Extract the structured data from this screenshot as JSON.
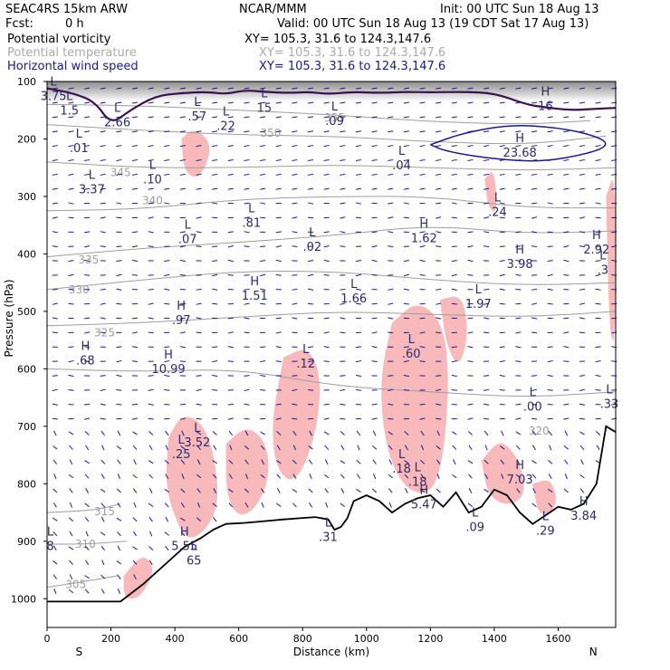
{
  "header": {
    "model": "SEAC4RS 15km ARW",
    "org": "NCAR/MMM",
    "init": "Init: 00 UTC Sun 18 Aug 13",
    "fcst_label": "Fcst:",
    "fcst_value": "0 h",
    "valid": "Valid: 00 UTC Sun 18 Aug 13 (19 CDT Sat 17 Aug 13)",
    "fields": [
      {
        "name": "Potential vorticity",
        "xy": "XY= 105.3, 31.6 to 124.3,147.6",
        "color": "#000000"
      },
      {
        "name": "Potential temperature",
        "xy": "XY= 105.3, 31.6 to 124.3,147.6",
        "color": "#aaaaaa"
      },
      {
        "name": "Horizontal wind speed",
        "xy": "XY= 105.3, 31.6 to 124.3,147.6",
        "color": "#1a1a8c"
      }
    ]
  },
  "chart_data": {
    "type": "cross-section",
    "xlabel": "Distance (km)",
    "ylabel": "Pressure (hPa)",
    "x_ticks": [
      0,
      200,
      400,
      600,
      800,
      1000,
      1200,
      1400,
      1600
    ],
    "y_ticks": [
      100,
      200,
      300,
      400,
      500,
      600,
      700,
      800,
      900,
      1000
    ],
    "xlim": [
      0,
      1780
    ],
    "ylim": [
      1050,
      100
    ],
    "x_end_labels": {
      "left": "S",
      "right": "N"
    },
    "terrain": [
      [
        0,
        1005
      ],
      [
        100,
        1005
      ],
      [
        230,
        1005
      ],
      [
        300,
        975
      ],
      [
        380,
        935
      ],
      [
        430,
        910
      ],
      [
        480,
        895
      ],
      [
        520,
        880
      ],
      [
        560,
        870
      ],
      [
        620,
        868
      ],
      [
        680,
        865
      ],
      [
        740,
        862
      ],
      [
        790,
        860
      ],
      [
        840,
        858
      ],
      [
        880,
        862
      ],
      [
        900,
        880
      ],
      [
        920,
        875
      ],
      [
        940,
        860
      ],
      [
        960,
        830
      ],
      [
        1000,
        820
      ],
      [
        1040,
        830
      ],
      [
        1080,
        850
      ],
      [
        1120,
        835
      ],
      [
        1160,
        825
      ],
      [
        1200,
        820
      ],
      [
        1240,
        840
      ],
      [
        1280,
        815
      ],
      [
        1320,
        850
      ],
      [
        1360,
        840
      ],
      [
        1400,
        810
      ],
      [
        1440,
        820
      ],
      [
        1480,
        850
      ],
      [
        1520,
        870
      ],
      [
        1560,
        855
      ],
      [
        1600,
        840
      ],
      [
        1640,
        845
      ],
      [
        1680,
        835
      ],
      [
        1720,
        800
      ],
      [
        1750,
        700
      ],
      [
        1780,
        710
      ]
    ],
    "theta_contours": [
      {
        "label": "355",
        "label_at": [
          900,
          163
        ],
        "points": [
          [
            0,
            140
          ],
          [
            300,
            142
          ],
          [
            600,
            150
          ],
          [
            900,
            158
          ],
          [
            1200,
            170
          ],
          [
            1500,
            175
          ],
          [
            1700,
            168
          ]
        ]
      },
      {
        "label": "350",
        "label_at": [
          700,
          190
        ],
        "points": [
          [
            0,
            175
          ],
          [
            300,
            185
          ],
          [
            600,
            193
          ],
          [
            900,
            195
          ],
          [
            1200,
            205
          ],
          [
            1500,
            210
          ],
          [
            1750,
            195
          ]
        ]
      },
      {
        "label": "345",
        "label_at": [
          230,
          258
        ],
        "points": [
          [
            0,
            240
          ],
          [
            300,
            250
          ],
          [
            600,
            250
          ],
          [
            900,
            245
          ],
          [
            1200,
            250
          ],
          [
            1500,
            255
          ],
          [
            1780,
            250
          ]
        ]
      },
      {
        "label": "340",
        "label_at": [
          330,
          307
        ],
        "points": [
          [
            0,
            325
          ],
          [
            300,
            322
          ],
          [
            600,
            305
          ],
          [
            900,
            300
          ],
          [
            1200,
            300
          ],
          [
            1500,
            320
          ],
          [
            1780,
            320
          ]
        ]
      },
      {
        "label": "335",
        "label_at": [
          130,
          410
        ],
        "points": [
          [
            0,
            405
          ],
          [
            300,
            390
          ],
          [
            600,
            380
          ],
          [
            900,
            368
          ],
          [
            1200,
            350
          ],
          [
            1500,
            365
          ],
          [
            1780,
            360
          ]
        ]
      },
      {
        "label": "330",
        "label_at": [
          100,
          462
        ],
        "points": [
          [
            0,
            462
          ],
          [
            300,
            445
          ],
          [
            600,
            430
          ],
          [
            900,
            430
          ],
          [
            1200,
            445
          ],
          [
            1500,
            455
          ],
          [
            1780,
            450
          ]
        ]
      },
      {
        "label": "325",
        "label_at": [
          180,
          537
        ],
        "points": [
          [
            0,
            525
          ],
          [
            300,
            520
          ],
          [
            600,
            510
          ],
          [
            900,
            500
          ],
          [
            1200,
            505
          ],
          [
            1500,
            510
          ],
          [
            1780,
            500
          ]
        ]
      },
      {
        "label": "320",
        "label_at": [
          1540,
          708
        ],
        "points": [
          [
            0,
            600
          ],
          [
            300,
            605
          ],
          [
            600,
            600
          ],
          [
            900,
            630
          ],
          [
            1200,
            640
          ],
          [
            1500,
            650
          ],
          [
            1780,
            640
          ]
        ]
      },
      {
        "label": "315",
        "label_at": [
          180,
          848
        ],
        "points": [
          [
            0,
            850
          ],
          [
            150,
            846
          ],
          [
            230,
            835
          ]
        ]
      },
      {
        "label": "310",
        "label_at": [
          120,
          905
        ],
        "points": [
          [
            0,
            905
          ],
          [
            120,
            905
          ],
          [
            250,
            900
          ]
        ]
      },
      {
        "label": "305",
        "label_at": [
          90,
          975
        ],
        "points": [
          [
            0,
            980
          ],
          [
            120,
            970
          ],
          [
            220,
            960
          ]
        ]
      }
    ],
    "pv_extrema": [
      {
        "type": "L",
        "value": "3.75",
        "x": 20,
        "p": 120
      },
      {
        "type": "L",
        "value": "1.5",
        "x": 70,
        "p": 145
      },
      {
        "type": "L",
        "value": "2.66",
        "x": 220,
        "p": 165
      },
      {
        "type": "L",
        "value": ".57",
        "x": 470,
        "p": 155
      },
      {
        "type": "L",
        "value": ".22",
        "x": 560,
        "p": 172
      },
      {
        "type": "L",
        "value": "15",
        "x": 680,
        "p": 140
      },
      {
        "type": "L",
        "value": ".09",
        "x": 900,
        "p": 163
      },
      {
        "type": "H",
        "value": "16",
        "x": 1560,
        "p": 137
      },
      {
        "type": "L",
        "value": ".01",
        "x": 100,
        "p": 210
      },
      {
        "type": "L",
        "value": ".10",
        "x": 330,
        "p": 265
      },
      {
        "type": "L",
        "value": ".04",
        "x": 1110,
        "p": 240
      },
      {
        "type": "H",
        "value": "23.68",
        "x": 1480,
        "p": 218
      },
      {
        "type": "L",
        "value": "3.37",
        "x": 140,
        "p": 282
      },
      {
        "type": "L",
        "value": ".81",
        "x": 640,
        "p": 340
      },
      {
        "type": "L",
        "value": ".07",
        "x": 440,
        "p": 369
      },
      {
        "type": "L",
        "value": ".24",
        "x": 1410,
        "p": 321
      },
      {
        "type": "L",
        "value": ".02",
        "x": 830,
        "p": 382
      },
      {
        "type": "H",
        "value": "1.62",
        "x": 1180,
        "p": 367
      },
      {
        "type": "H",
        "value": "2.92",
        "x": 1720,
        "p": 387
      },
      {
        "type": "H",
        "value": "3.98",
        "x": 1480,
        "p": 412
      },
      {
        "type": "H",
        "value": "1.51",
        "x": 650,
        "p": 467
      },
      {
        "type": "L",
        "value": "1.66",
        "x": 960,
        "p": 472
      },
      {
        "type": "L",
        "value": "1.97",
        "x": 1350,
        "p": 481
      },
      {
        "type": "H",
        "value": ".97",
        "x": 420,
        "p": 510
      },
      {
        "type": "L",
        "value": ".60",
        "x": 1140,
        "p": 568
      },
      {
        "type": "H",
        "value": ".68",
        "x": 120,
        "p": 580
      },
      {
        "type": "L",
        "value": ".12",
        "x": 810,
        "p": 585
      },
      {
        "type": "H",
        "value": "10.99",
        "x": 380,
        "p": 595
      },
      {
        "type": "L",
        "value": ".00",
        "x": 1520,
        "p": 660
      },
      {
        "type": "L",
        "value": ".33",
        "x": 1760,
        "p": 655
      },
      {
        "type": "L",
        "value": "3.52",
        "x": 470,
        "p": 722
      },
      {
        "type": "L",
        "value": ".25",
        "x": 420,
        "p": 743
      },
      {
        "type": "L",
        "value": ".18",
        "x": 1110,
        "p": 768
      },
      {
        "type": "L",
        "value": ".18",
        "x": 1160,
        "p": 791
      },
      {
        "type": "H",
        "value": "7.03",
        "x": 1480,
        "p": 787
      },
      {
        "type": "H",
        "value": "5.47",
        "x": 1180,
        "p": 830
      },
      {
        "type": "L",
        "value": ".09",
        "x": 1340,
        "p": 870
      },
      {
        "type": "H",
        "value": "3.84",
        "x": 1680,
        "p": 850
      },
      {
        "type": "L",
        "value": ".29",
        "x": 1560,
        "p": 876
      },
      {
        "type": "H",
        "value": "5.55",
        "x": 430,
        "p": 903
      },
      {
        "type": "L",
        "value": ".31",
        "x": 880,
        "p": 887
      },
      {
        "type": "L",
        "value": "8",
        "x": 10,
        "p": 903
      },
      {
        "type": "L",
        "value": ".3",
        "x": 1740,
        "p": 422
      },
      {
        "type": "L",
        "value": "65",
        "x": 460,
        "p": 928
      }
    ],
    "pv_regions": [
      {
        "level": "positive",
        "color": "#f7b9b9",
        "points": [
          [
            380,
            720
          ],
          [
            420,
            680
          ],
          [
            480,
            690
          ],
          [
            520,
            740
          ],
          [
            540,
            830
          ],
          [
            500,
            880
          ],
          [
            440,
            900
          ],
          [
            400,
            860
          ],
          [
            370,
            800
          ]
        ]
      },
      {
        "level": "positive",
        "color": "#f7b9b9",
        "points": [
          [
            560,
            730
          ],
          [
            620,
            700
          ],
          [
            680,
            720
          ],
          [
            700,
            780
          ],
          [
            660,
            840
          ],
          [
            600,
            860
          ],
          [
            560,
            820
          ]
        ]
      },
      {
        "level": "positive",
        "color": "#f7b9b9",
        "points": [
          [
            740,
            580
          ],
          [
            820,
            560
          ],
          [
            860,
            620
          ],
          [
            840,
            720
          ],
          [
            780,
            800
          ],
          [
            720,
            780
          ],
          [
            700,
            700
          ]
        ]
      },
      {
        "level": "positive",
        "color": "#f7b9b9",
        "points": [
          [
            1080,
            520
          ],
          [
            1160,
            480
          ],
          [
            1240,
            520
          ],
          [
            1260,
            620
          ],
          [
            1240,
            760
          ],
          [
            1200,
            820
          ],
          [
            1120,
            810
          ],
          [
            1060,
            740
          ],
          [
            1040,
            620
          ]
        ]
      },
      {
        "level": "positive",
        "color": "#f7b9b9",
        "points": [
          [
            1230,
            480
          ],
          [
            1300,
            470
          ],
          [
            1320,
            540
          ],
          [
            1290,
            600
          ],
          [
            1250,
            560
          ]
        ]
      },
      {
        "level": "positive",
        "color": "#f7b9b9",
        "points": [
          [
            1360,
            760
          ],
          [
            1420,
            720
          ],
          [
            1480,
            760
          ],
          [
            1500,
            820
          ],
          [
            1440,
            840
          ],
          [
            1380,
            820
          ]
        ]
      },
      {
        "level": "positive",
        "color": "#f7b9b9",
        "points": [
          [
            1520,
            800
          ],
          [
            1580,
            790
          ],
          [
            1600,
            840
          ],
          [
            1540,
            860
          ]
        ]
      },
      {
        "level": "positive",
        "color": "#f7b9b9",
        "points": [
          [
            240,
            960
          ],
          [
            300,
            920
          ],
          [
            340,
            950
          ],
          [
            290,
            1000
          ],
          [
            240,
            1000
          ]
        ]
      },
      {
        "level": "positive",
        "color": "#f7b9b9",
        "points": [
          [
            420,
            210
          ],
          [
            480,
            200
          ],
          [
            500,
            240
          ],
          [
            440,
            250
          ]
        ]
      },
      {
        "level": "positive",
        "color": "#f7b9b9",
        "points": [
          [
            1370,
            270
          ],
          [
            1400,
            250
          ],
          [
            1410,
            330
          ],
          [
            1380,
            320
          ]
        ]
      },
      {
        "level": "positive",
        "color": "#f7b9b9",
        "points": [
          [
            1750,
            300
          ],
          [
            1780,
            250
          ],
          [
            1780,
            560
          ],
          [
            1760,
            540
          ]
        ]
      },
      {
        "level": "positive",
        "color": "#f7b9b9",
        "points": [
          [
            420,
            200
          ],
          [
            460,
            180
          ],
          [
            520,
            210
          ],
          [
            480,
            270
          ],
          [
            430,
            260
          ]
        ]
      }
    ],
    "stratosphere_shading": {
      "color": "#c8c8c8",
      "top_p": 100,
      "base_p": 135
    },
    "jet_contour": {
      "color": "#1a1a8c",
      "points": [
        [
          1200,
          210
        ],
        [
          1300,
          190
        ],
        [
          1450,
          175
        ],
        [
          1600,
          180
        ],
        [
          1720,
          195
        ],
        [
          1760,
          210
        ],
        [
          1700,
          225
        ],
        [
          1550,
          240
        ],
        [
          1400,
          235
        ],
        [
          1250,
          222
        ]
      ]
    },
    "tropopause_contour": {
      "color": "#3b0f4f",
      "points": [
        [
          0,
          112
        ],
        [
          80,
          120
        ],
        [
          150,
          135
        ],
        [
          200,
          175
        ],
        [
          260,
          150
        ],
        [
          340,
          125
        ],
        [
          420,
          120
        ],
        [
          500,
          118
        ],
        [
          560,
          122
        ],
        [
          620,
          115
        ],
        [
          680,
          118
        ],
        [
          760,
          120
        ],
        [
          820,
          118
        ],
        [
          880,
          122
        ],
        [
          960,
          118
        ],
        [
          1040,
          120
        ],
        [
          1120,
          118
        ],
        [
          1200,
          119
        ],
        [
          1300,
          118
        ],
        [
          1400,
          120
        ],
        [
          1500,
          140
        ],
        [
          1560,
          145
        ],
        [
          1640,
          150
        ],
        [
          1700,
          148
        ],
        [
          1780,
          146
        ]
      ]
    },
    "wind_barbs": {
      "color": "#1a1a8c",
      "x_spacing_km": 50,
      "p_spacing_hpa": 25
    }
  }
}
